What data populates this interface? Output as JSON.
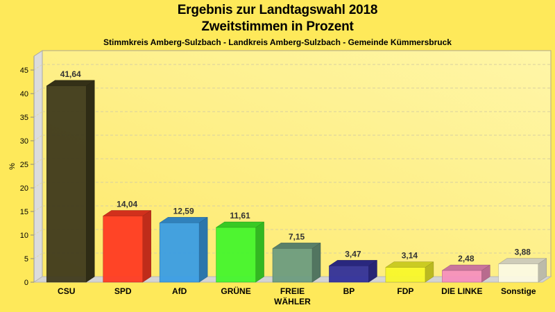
{
  "chart_data": {
    "type": "bar",
    "title": "Ergebnis zur Landtagswahl 2018",
    "subtitle": "Zweitstimmen in Prozent",
    "caption": "Stimmkreis Amberg-Sulzbach - Landkreis Amberg-Sulzbach - Gemeinde Kümmersbruck",
    "xlabel": "",
    "ylabel": "%",
    "ylim": [
      0,
      45
    ],
    "yticks": [
      0,
      5,
      10,
      15,
      20,
      25,
      30,
      35,
      40,
      45
    ],
    "grid": true,
    "categories": [
      "CSU",
      "SPD",
      "AfD",
      "GRÜNE",
      "FREIE WÄHLER",
      "BP",
      "FDP",
      "DIE LINKE",
      "Sonstige"
    ],
    "category_lines": [
      [
        "CSU"
      ],
      [
        "SPD"
      ],
      [
        "AfD"
      ],
      [
        "GRÜNE"
      ],
      [
        "FREIE",
        "WÄHLER"
      ],
      [
        "BP"
      ],
      [
        "FDP"
      ],
      [
        "DIE LINKE"
      ],
      [
        "Sonstige"
      ]
    ],
    "values": [
      41.64,
      14.04,
      12.59,
      11.61,
      7.15,
      3.47,
      3.14,
      2.48,
      3.88
    ],
    "value_labels": [
      "41,64",
      "14,04",
      "12,59",
      "11,61",
      "7,15",
      "3,47",
      "3,14",
      "2,48",
      "3,88"
    ],
    "colors": [
      "#3f3a1c",
      "#ff3b22",
      "#3a9de4",
      "#44f52c",
      "#6d9c80",
      "#32309a",
      "#f8f72a",
      "#f58fbd",
      "#fbf9e2"
    ]
  }
}
